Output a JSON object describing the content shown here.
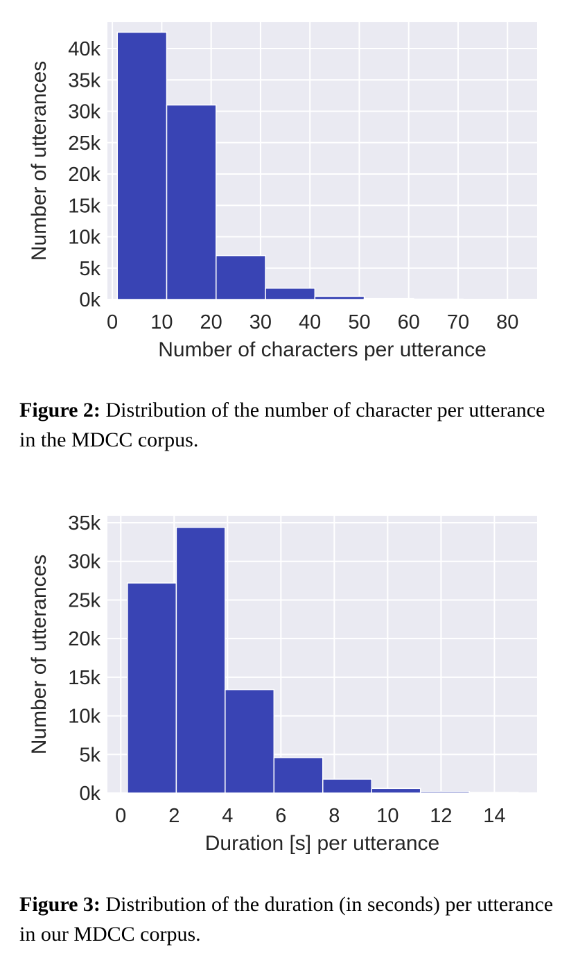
{
  "figures": [
    {
      "caption": {
        "label": "Figure 2:",
        "text": "Distribution of the number of character per utterance in the MDCC corpus."
      }
    },
    {
      "caption": {
        "label": "Figure 3:",
        "text": "Distribution of the duration (in seconds) per utterance in our MDCC corpus."
      }
    }
  ],
  "chart_data": [
    {
      "type": "bar",
      "title": "",
      "xlabel": "Number of characters per utterance",
      "ylabel": "Number of utterances",
      "bin_edges": [
        1,
        11,
        21,
        31,
        41,
        51,
        61,
        71,
        81
      ],
      "values": [
        42600,
        31000,
        7000,
        1800,
        500,
        150,
        60,
        30
      ],
      "xlim": [
        -1,
        86
      ],
      "ylim": [
        0,
        44200
      ],
      "xticks": [
        0,
        10,
        20,
        30,
        40,
        50,
        60,
        70,
        80
      ],
      "xtick_labels": [
        "0",
        "10",
        "20",
        "30",
        "40",
        "50",
        "60",
        "70",
        "80"
      ],
      "yticks": [
        0,
        5000,
        10000,
        15000,
        20000,
        25000,
        30000,
        35000,
        40000
      ],
      "ytick_labels": [
        "0k",
        "5k",
        "10k",
        "15k",
        "20k",
        "25k",
        "30k",
        "35k",
        "40k"
      ],
      "grid": true,
      "bar_color": "#3944b4",
      "background": "#eaeaf2"
    },
    {
      "type": "bar",
      "title": "",
      "xlabel": "Duration [s] per utterance",
      "ylabel": "Number of utterances",
      "bin_edges": [
        0.25,
        2.08,
        3.91,
        5.74,
        7.57,
        9.4,
        11.23,
        13.06,
        14.89
      ],
      "values": [
        27200,
        34400,
        13400,
        4600,
        1800,
        600,
        200,
        80
      ],
      "xlim": [
        -0.5,
        15.6
      ],
      "ylim": [
        0,
        35900
      ],
      "xticks": [
        0,
        2,
        4,
        6,
        8,
        10,
        12,
        14
      ],
      "xtick_labels": [
        "0",
        "2",
        "4",
        "6",
        "8",
        "10",
        "12",
        "14"
      ],
      "yticks": [
        0,
        5000,
        10000,
        15000,
        20000,
        25000,
        30000,
        35000
      ],
      "ytick_labels": [
        "0k",
        "5k",
        "10k",
        "15k",
        "20k",
        "25k",
        "30k",
        "35k"
      ],
      "grid": true,
      "bar_color": "#3944b4",
      "background": "#eaeaf2"
    }
  ]
}
